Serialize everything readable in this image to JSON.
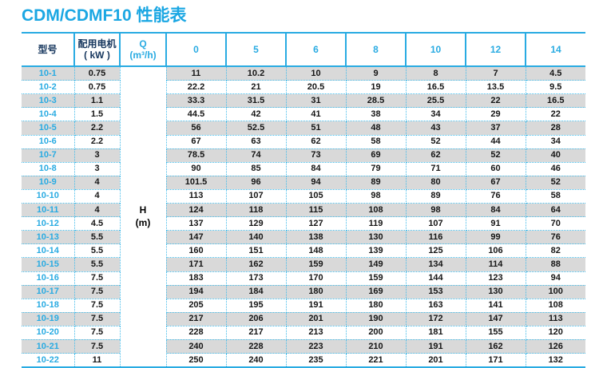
{
  "title": "CDM/CDMF10 性能表",
  "colors": {
    "title_cyan": "#1BA7E3",
    "accent_cyan": "#29ABE2",
    "header_navy": "#17375E",
    "stripe_gray": "#D9D9D9",
    "dotted_line_cyan": "#45BCEA",
    "value_text": "#151515"
  },
  "table": {
    "headers": {
      "model": "型号",
      "motor_line1": "配用电机",
      "motor_line2": "( kW )",
      "q_line1": "Q",
      "q_line2": "(m³/h)",
      "flow_columns": [
        "0",
        "5",
        "6",
        "8",
        "10",
        "12",
        "14"
      ]
    },
    "h_label": {
      "line1": "H",
      "line2": "(m)"
    },
    "rows": [
      {
        "model": "10-1",
        "kw": "0.75",
        "values": [
          "11",
          "10.2",
          "10",
          "9",
          "8",
          "7",
          "4.5"
        ]
      },
      {
        "model": "10-2",
        "kw": "0.75",
        "values": [
          "22.2",
          "21",
          "20.5",
          "19",
          "16.5",
          "13.5",
          "9.5"
        ]
      },
      {
        "model": "10-3",
        "kw": "1.1",
        "values": [
          "33.3",
          "31.5",
          "31",
          "28.5",
          "25.5",
          "22",
          "16.5"
        ]
      },
      {
        "model": "10-4",
        "kw": "1.5",
        "values": [
          "44.5",
          "42",
          "41",
          "38",
          "34",
          "29",
          "22"
        ]
      },
      {
        "model": "10-5",
        "kw": "2.2",
        "values": [
          "56",
          "52.5",
          "51",
          "48",
          "43",
          "37",
          "28"
        ]
      },
      {
        "model": "10-6",
        "kw": "2.2",
        "values": [
          "67",
          "63",
          "62",
          "58",
          "52",
          "44",
          "34"
        ]
      },
      {
        "model": "10-7",
        "kw": "3",
        "values": [
          "78.5",
          "74",
          "73",
          "69",
          "62",
          "52",
          "40"
        ]
      },
      {
        "model": "10-8",
        "kw": "3",
        "values": [
          "90",
          "85",
          "84",
          "79",
          "71",
          "60",
          "46"
        ]
      },
      {
        "model": "10-9",
        "kw": "4",
        "values": [
          "101.5",
          "96",
          "94",
          "89",
          "80",
          "67",
          "52"
        ]
      },
      {
        "model": "10-10",
        "kw": "4",
        "values": [
          "113",
          "107",
          "105",
          "98",
          "89",
          "76",
          "58"
        ]
      },
      {
        "model": "10-11",
        "kw": "4",
        "values": [
          "124",
          "118",
          "115",
          "108",
          "98",
          "84",
          "64"
        ]
      },
      {
        "model": "10-12",
        "kw": "4.5",
        "values": [
          "137",
          "129",
          "127",
          "119",
          "107",
          "91",
          "70"
        ]
      },
      {
        "model": "10-13",
        "kw": "5.5",
        "values": [
          "147",
          "140",
          "138",
          "130",
          "116",
          "99",
          "76"
        ]
      },
      {
        "model": "10-14",
        "kw": "5.5",
        "values": [
          "160",
          "151",
          "148",
          "139",
          "125",
          "106",
          "82"
        ]
      },
      {
        "model": "10-15",
        "kw": "5.5",
        "values": [
          "171",
          "162",
          "159",
          "149",
          "134",
          "114",
          "88"
        ]
      },
      {
        "model": "10-16",
        "kw": "7.5",
        "values": [
          "183",
          "173",
          "170",
          "159",
          "144",
          "123",
          "94"
        ]
      },
      {
        "model": "10-17",
        "kw": "7.5",
        "values": [
          "194",
          "184",
          "180",
          "169",
          "153",
          "130",
          "100"
        ]
      },
      {
        "model": "10-18",
        "kw": "7.5",
        "values": [
          "205",
          "195",
          "191",
          "180",
          "163",
          "141",
          "108"
        ]
      },
      {
        "model": "10-19",
        "kw": "7.5",
        "values": [
          "217",
          "206",
          "201",
          "190",
          "172",
          "147",
          "113"
        ]
      },
      {
        "model": "10-20",
        "kw": "7.5",
        "values": [
          "228",
          "217",
          "213",
          "200",
          "181",
          "155",
          "120"
        ]
      },
      {
        "model": "10-21",
        "kw": "7.5",
        "values": [
          "240",
          "228",
          "223",
          "210",
          "191",
          "162",
          "126"
        ]
      },
      {
        "model": "10-22",
        "kw": "11",
        "values": [
          "250",
          "240",
          "235",
          "221",
          "201",
          "171",
          "132"
        ]
      }
    ]
  }
}
